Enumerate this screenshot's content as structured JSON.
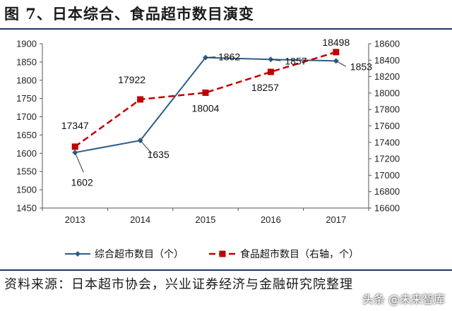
{
  "title": "图 7、日本综合、食品超市数目演变",
  "source": "资料来源：日本超市协会，兴业证券经济与金融研究院整理",
  "watermark": "头条 @未来智库",
  "chart_data": {
    "type": "line",
    "categories": [
      "2013",
      "2014",
      "2015",
      "2016",
      "2017"
    ],
    "series": [
      {
        "name": "综合超市数目（个）",
        "axis": "left",
        "color": "#2e5c8a",
        "style": "solid",
        "marker": "diamond",
        "values": [
          1602,
          1635,
          1862,
          1857,
          1853
        ]
      },
      {
        "name": "食品超市数目（右轴，个）",
        "axis": "right",
        "color": "#c00000",
        "style": "dashed",
        "marker": "square",
        "values": [
          17347,
          17922,
          18004,
          18257,
          18498
        ]
      }
    ],
    "left_axis": {
      "min": 1450,
      "max": 1900,
      "step": 50
    },
    "right_axis": {
      "min": 16600,
      "max": 18600,
      "step": 200
    },
    "legend_position": "bottom",
    "grid": false
  }
}
